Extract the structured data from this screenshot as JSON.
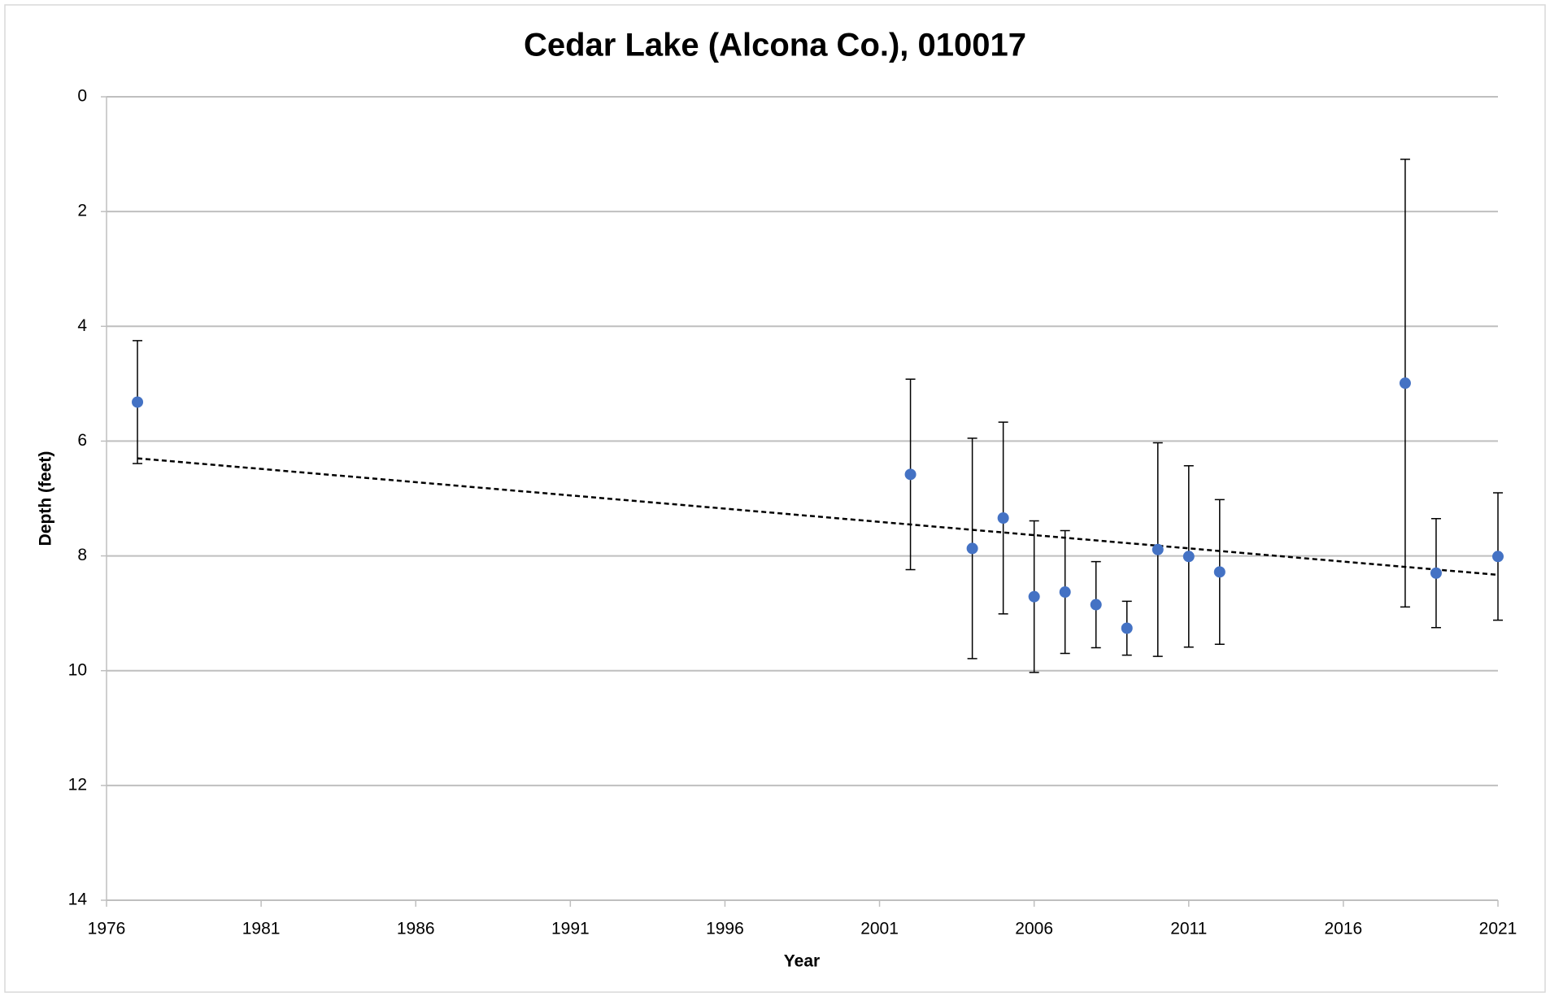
{
  "chart_data": {
    "type": "scatter",
    "title": "Cedar Lake (Alcona Co.), 010017",
    "xlabel": "Year",
    "ylabel": "Depth (feet)",
    "x": [
      1977,
      2002,
      2004,
      2005,
      2006,
      2007,
      2008,
      2009,
      2010,
      2011,
      2012,
      2018,
      2019,
      2021
    ],
    "values": [
      5.32,
      6.58,
      7.87,
      7.34,
      8.71,
      8.63,
      8.85,
      9.26,
      7.89,
      8.01,
      8.28,
      4.99,
      8.3,
      8.01
    ],
    "errors": [
      1.07,
      1.66,
      1.92,
      1.67,
      1.32,
      1.07,
      0.75,
      0.47,
      1.86,
      1.58,
      1.26,
      3.9,
      0.95,
      1.11
    ],
    "color": "#4472c4",
    "trend": {
      "x": [
        1977,
        2021
      ],
      "values": [
        6.3,
        8.33
      ],
      "color": "#000000"
    },
    "xlim": [
      1976,
      2021
    ],
    "xticks": [
      1976,
      1981,
      1986,
      1991,
      1996,
      2001,
      2006,
      2011,
      2016,
      2021
    ],
    "ylim": [
      0,
      14
    ],
    "yticks": [
      0,
      2,
      4,
      6,
      8,
      10,
      12,
      14
    ],
    "y_inverted": true,
    "grid": true
  }
}
